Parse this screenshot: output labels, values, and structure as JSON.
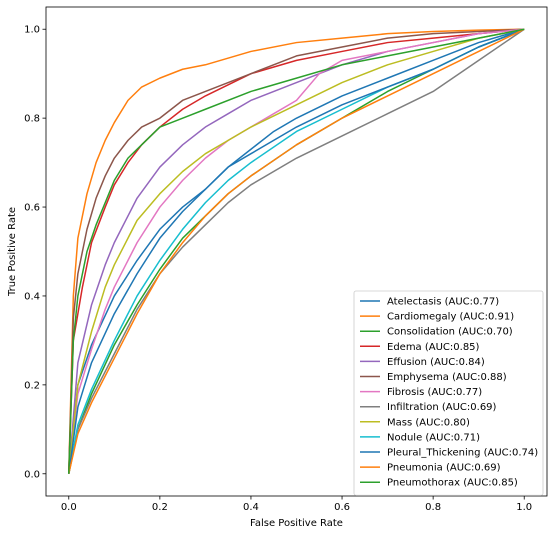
{
  "chart_data": {
    "type": "line",
    "title": "",
    "xlabel": "False Positive Rate",
    "ylabel": "True Positive Rate",
    "xlim": [
      -0.05,
      1.05
    ],
    "ylim": [
      -0.05,
      1.05
    ],
    "xticks": [
      "0.0",
      "0.2",
      "0.4",
      "0.6",
      "0.8",
      "1.0"
    ],
    "yticks": [
      "0.0",
      "0.2",
      "0.4",
      "0.6",
      "0.8",
      "1.0"
    ],
    "grid": false,
    "legend_position": "lower-right",
    "series": [
      {
        "name": "Atelectasis (AUC:0.77)",
        "color": "#1f77b4",
        "x": [
          0,
          0.02,
          0.05,
          0.1,
          0.15,
          0.2,
          0.25,
          0.3,
          0.35,
          0.4,
          0.45,
          0.5,
          0.6,
          0.7,
          0.8,
          0.9,
          1.0
        ],
        "y": [
          0,
          0.2,
          0.29,
          0.4,
          0.48,
          0.55,
          0.6,
          0.64,
          0.69,
          0.73,
          0.77,
          0.8,
          0.85,
          0.89,
          0.93,
          0.97,
          1.0
        ]
      },
      {
        "name": "Cardiomegaly (AUC:0.91)",
        "color": "#ff7f0e",
        "x": [
          0,
          0.01,
          0.02,
          0.04,
          0.06,
          0.08,
          0.1,
          0.13,
          0.16,
          0.2,
          0.25,
          0.3,
          0.4,
          0.5,
          0.6,
          0.7,
          0.8,
          0.9,
          1.0
        ],
        "y": [
          0,
          0.4,
          0.53,
          0.63,
          0.7,
          0.75,
          0.79,
          0.84,
          0.87,
          0.89,
          0.91,
          0.92,
          0.95,
          0.97,
          0.98,
          0.99,
          0.995,
          0.998,
          1.0
        ]
      },
      {
        "name": "Consolidation (AUC:0.70)",
        "color": "#2ca02c",
        "x": [
          0,
          0.02,
          0.05,
          0.1,
          0.15,
          0.2,
          0.25,
          0.3,
          0.35,
          0.4,
          0.5,
          0.6,
          0.7,
          0.8,
          0.9,
          1.0
        ],
        "y": [
          0,
          0.1,
          0.18,
          0.29,
          0.38,
          0.46,
          0.53,
          0.58,
          0.63,
          0.67,
          0.74,
          0.8,
          0.86,
          0.91,
          0.96,
          1.0
        ]
      },
      {
        "name": "Edema (AUC:0.85)",
        "color": "#d62728",
        "x": [
          0,
          0.01,
          0.03,
          0.05,
          0.08,
          0.1,
          0.13,
          0.16,
          0.2,
          0.25,
          0.3,
          0.4,
          0.5,
          0.6,
          0.7,
          0.8,
          0.9,
          1.0
        ],
        "y": [
          0,
          0.3,
          0.42,
          0.52,
          0.6,
          0.65,
          0.7,
          0.74,
          0.78,
          0.82,
          0.85,
          0.9,
          0.93,
          0.95,
          0.97,
          0.98,
          0.99,
          1.0
        ]
      },
      {
        "name": "Effusion (AUC:0.84)",
        "color": "#9467bd",
        "x": [
          0,
          0.02,
          0.05,
          0.08,
          0.1,
          0.15,
          0.2,
          0.25,
          0.3,
          0.35,
          0.4,
          0.5,
          0.6,
          0.7,
          0.8,
          0.9,
          1.0
        ],
        "y": [
          0,
          0.25,
          0.38,
          0.47,
          0.52,
          0.62,
          0.69,
          0.74,
          0.78,
          0.81,
          0.84,
          0.88,
          0.92,
          0.95,
          0.97,
          0.99,
          1.0
        ]
      },
      {
        "name": "Emphysema (AUC:0.88)",
        "color": "#8c564b",
        "x": [
          0,
          0.01,
          0.02,
          0.04,
          0.06,
          0.08,
          0.1,
          0.13,
          0.16,
          0.2,
          0.25,
          0.3,
          0.4,
          0.5,
          0.6,
          0.7,
          0.8,
          0.9,
          1.0
        ],
        "y": [
          0,
          0.35,
          0.45,
          0.55,
          0.62,
          0.67,
          0.71,
          0.75,
          0.78,
          0.8,
          0.84,
          0.86,
          0.9,
          0.94,
          0.96,
          0.98,
          0.99,
          0.995,
          1.0
        ]
      },
      {
        "name": "Fibrosis (AUC:0.77)",
        "color": "#e377c2",
        "x": [
          0,
          0.02,
          0.05,
          0.08,
          0.1,
          0.15,
          0.2,
          0.25,
          0.3,
          0.35,
          0.4,
          0.45,
          0.5,
          0.55,
          0.6,
          0.7,
          0.8,
          0.9,
          1.0
        ],
        "y": [
          0,
          0.18,
          0.28,
          0.37,
          0.42,
          0.52,
          0.6,
          0.66,
          0.71,
          0.75,
          0.78,
          0.81,
          0.84,
          0.9,
          0.93,
          0.95,
          0.97,
          0.99,
          1.0
        ]
      },
      {
        "name": "Infiltration (AUC:0.69)",
        "color": "#7f7f7f",
        "x": [
          0,
          0.02,
          0.05,
          0.1,
          0.15,
          0.2,
          0.25,
          0.3,
          0.35,
          0.4,
          0.5,
          0.6,
          0.7,
          0.8,
          0.9,
          1.0
        ],
        "y": [
          0,
          0.1,
          0.17,
          0.27,
          0.37,
          0.45,
          0.51,
          0.56,
          0.61,
          0.65,
          0.71,
          0.76,
          0.81,
          0.86,
          0.93,
          1.0
        ]
      },
      {
        "name": "Mass (AUC:0.80)",
        "color": "#bcbd22",
        "x": [
          0,
          0.02,
          0.05,
          0.08,
          0.1,
          0.15,
          0.2,
          0.25,
          0.3,
          0.35,
          0.4,
          0.5,
          0.6,
          0.7,
          0.8,
          0.9,
          1.0
        ],
        "y": [
          0,
          0.2,
          0.32,
          0.42,
          0.47,
          0.57,
          0.63,
          0.68,
          0.72,
          0.75,
          0.78,
          0.83,
          0.88,
          0.92,
          0.95,
          0.98,
          1.0
        ]
      },
      {
        "name": "Nodule (AUC:0.71)",
        "color": "#17becf",
        "x": [
          0,
          0.02,
          0.05,
          0.1,
          0.15,
          0.2,
          0.25,
          0.3,
          0.35,
          0.4,
          0.5,
          0.6,
          0.7,
          0.8,
          0.9,
          1.0
        ],
        "y": [
          0,
          0.11,
          0.19,
          0.3,
          0.4,
          0.48,
          0.55,
          0.61,
          0.66,
          0.7,
          0.77,
          0.82,
          0.87,
          0.91,
          0.96,
          1.0
        ]
      },
      {
        "name": "Pleural_Thickening (AUC:0.74)",
        "color": "#1f77b4",
        "x": [
          0,
          0.02,
          0.05,
          0.1,
          0.15,
          0.2,
          0.25,
          0.3,
          0.35,
          0.4,
          0.5,
          0.6,
          0.7,
          0.8,
          0.9,
          1.0
        ],
        "y": [
          0,
          0.15,
          0.25,
          0.36,
          0.45,
          0.53,
          0.59,
          0.64,
          0.69,
          0.72,
          0.78,
          0.83,
          0.87,
          0.91,
          0.96,
          1.0
        ]
      },
      {
        "name": "Pneumonia (AUC:0.69)",
        "color": "#ff7f0e",
        "x": [
          0,
          0.02,
          0.05,
          0.1,
          0.15,
          0.2,
          0.25,
          0.3,
          0.35,
          0.4,
          0.5,
          0.6,
          0.7,
          0.8,
          0.9,
          1.0
        ],
        "y": [
          0,
          0.09,
          0.16,
          0.26,
          0.36,
          0.45,
          0.52,
          0.58,
          0.63,
          0.67,
          0.74,
          0.8,
          0.85,
          0.9,
          0.95,
          1.0
        ]
      },
      {
        "name": "Pneumothorax (AUC:0.85)",
        "color": "#2ca02c",
        "x": [
          0,
          0.01,
          0.02,
          0.04,
          0.06,
          0.08,
          0.1,
          0.13,
          0.16,
          0.2,
          0.25,
          0.3,
          0.4,
          0.5,
          0.6,
          0.7,
          0.8,
          0.9,
          1.0
        ],
        "y": [
          0,
          0.3,
          0.4,
          0.5,
          0.56,
          0.61,
          0.66,
          0.71,
          0.74,
          0.78,
          0.8,
          0.82,
          0.86,
          0.89,
          0.92,
          0.94,
          0.96,
          0.98,
          1.0
        ]
      }
    ]
  }
}
